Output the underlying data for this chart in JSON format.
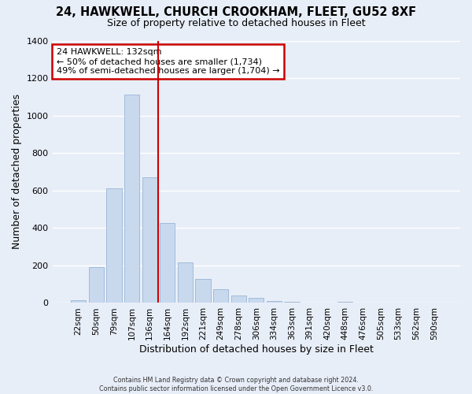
{
  "title": "24, HAWKWELL, CHURCH CROOKHAM, FLEET, GU52 8XF",
  "subtitle": "Size of property relative to detached houses in Fleet",
  "xlabel": "Distribution of detached houses by size in Fleet",
  "ylabel": "Number of detached properties",
  "bar_color": "#c8d9ee",
  "bar_edge_color": "#9ab5d5",
  "background_color": "#e8eef8",
  "grid_color": "#ffffff",
  "categories": [
    "22sqm",
    "50sqm",
    "79sqm",
    "107sqm",
    "136sqm",
    "164sqm",
    "192sqm",
    "221sqm",
    "249sqm",
    "278sqm",
    "306sqm",
    "334sqm",
    "363sqm",
    "391sqm",
    "420sqm",
    "448sqm",
    "476sqm",
    "505sqm",
    "533sqm",
    "562sqm",
    "590sqm"
  ],
  "values": [
    15,
    193,
    610,
    1110,
    670,
    425,
    218,
    128,
    75,
    38,
    28,
    10,
    5,
    0,
    0,
    8,
    0,
    0,
    0,
    0,
    0
  ],
  "vline_index": 4,
  "vline_color": "#cc0000",
  "annotation_text": "24 HAWKWELL: 132sqm\n← 50% of detached houses are smaller (1,734)\n49% of semi-detached houses are larger (1,704) →",
  "annotation_box_edge_color": "#cc0000",
  "ylim": [
    0,
    1400
  ],
  "yticks": [
    0,
    200,
    400,
    600,
    800,
    1000,
    1200,
    1400
  ],
  "footer_line1": "Contains HM Land Registry data © Crown copyright and database right 2024.",
  "footer_line2": "Contains public sector information licensed under the Open Government Licence v3.0."
}
